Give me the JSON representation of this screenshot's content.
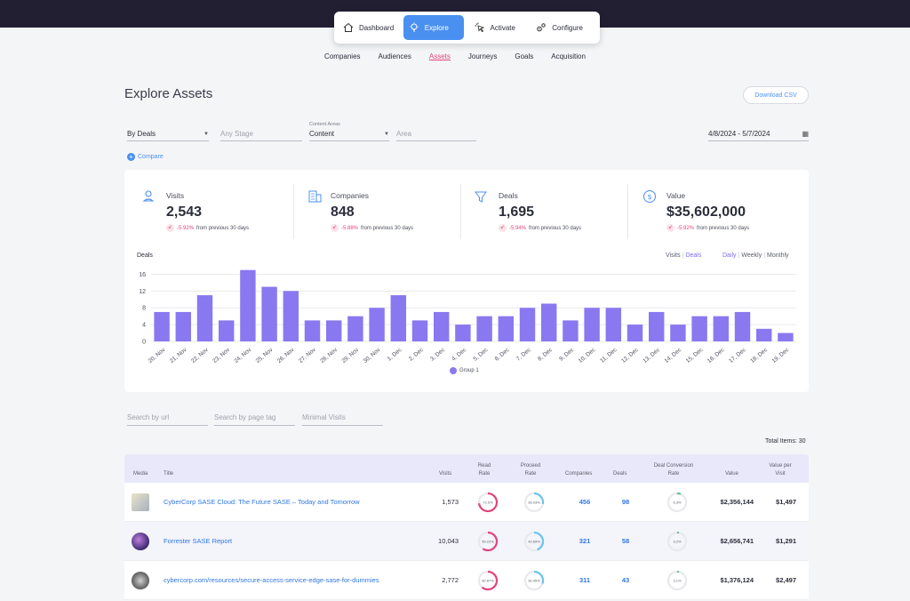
{
  "nav": {
    "items": [
      {
        "label": "Dashboard",
        "icon": "home-icon"
      },
      {
        "label": "Explore",
        "icon": "bulb-icon",
        "active": true
      },
      {
        "label": "Activate",
        "icon": "click-icon"
      },
      {
        "label": "Configure",
        "icon": "gears-icon"
      }
    ]
  },
  "subnav": [
    "Companies",
    "Audiences",
    "Assets",
    "Journeys",
    "Goals",
    "Acquisition"
  ],
  "page": {
    "title": "Explore Assets",
    "download_label": "Download CSV"
  },
  "filters": {
    "by_deals": "By Deals",
    "stage_placeholder": "Any Stage",
    "content_areas_label": "Content Areas",
    "content_value": "Content",
    "area_placeholder": "Area",
    "date_range": "4/8/2024  - 5/7/2024",
    "compare_label": "Compare"
  },
  "kpis": [
    {
      "label": "Visits",
      "value": "2,543",
      "delta": "-5.92%",
      "suffix": "from previous 30 days",
      "icon": "visitor-icon"
    },
    {
      "label": "Companies",
      "value": "848",
      "delta": "-5.88%",
      "suffix": "from previous 30 days",
      "icon": "building-icon"
    },
    {
      "label": "Deals",
      "value": "1,695",
      "delta": "-5.94%",
      "suffix": "from previous 30 days",
      "icon": "funnel-icon"
    },
    {
      "label": "Value",
      "value": "$35,602,000",
      "delta": "-5.92%",
      "suffix": "from previous 30 days",
      "icon": "dollar-icon"
    }
  ],
  "chart_toggles": {
    "visits": "Visits",
    "deals": "Deals",
    "daily": "Daily",
    "weekly": "Weekly",
    "monthly": "Monthly"
  },
  "chart_data": {
    "type": "bar",
    "title": "Deals",
    "categories": [
      "20, Nov",
      "21, Nov",
      "22, Nov",
      "23, Nov",
      "24, Nov",
      "25, Nov",
      "26, Nov",
      "27, Nov",
      "28, Nov",
      "29, Nov",
      "30, Nov",
      "1, Dec",
      "2, Dec",
      "3, Dec",
      "4, Dec",
      "5, Dec",
      "6, Dec",
      "7, Dec",
      "8, Dec",
      "9, Dec",
      "10, Dec",
      "11, Dec",
      "12, Dec",
      "13, Dec",
      "14, Dec",
      "15, Dec",
      "16, Dec",
      "17, Dec",
      "18, Dec",
      "19, Dec"
    ],
    "series": [
      {
        "name": "Group 1",
        "values": [
          7,
          7,
          11,
          5,
          17,
          13,
          12,
          5,
          5,
          6,
          8,
          11,
          5,
          7,
          4,
          6,
          6,
          8,
          9,
          5,
          8,
          8,
          4,
          7,
          4,
          6,
          6,
          7,
          3,
          2
        ],
        "color": "#8a78f0"
      }
    ],
    "yticks": [
      0,
      4,
      8,
      12,
      16
    ],
    "ylim": [
      0,
      18
    ],
    "grid": true,
    "legend": "bottom-center"
  },
  "table_filters": {
    "url_placeholder": "Search by url",
    "tag_placeholder": "Search by page tag",
    "visits_placeholder": "Minimal Visits"
  },
  "total_items": "Total Items: 30",
  "table": {
    "headers": {
      "media": "Media",
      "title": "Title",
      "visits": "Visits",
      "read_rate_1": "Read",
      "read_rate_2": "Rate",
      "proceed_rate_1": "Proceed",
      "proceed_rate_2": "Rate",
      "companies": "Companies",
      "deals": "Deals",
      "conv_1": "Deal Conversion",
      "conv_2": "Rate",
      "value": "Value",
      "vpv_1": "Value per",
      "vpv_2": "Visit"
    },
    "rows": [
      {
        "title": "CyberCorp SASE Cloud: The Future SASE – Today and Tomorrow",
        "visits": "1,573",
        "read_rate": 72.6,
        "read_label": "72.6%",
        "proceed_rate": 28.03,
        "proceed_label": "28.03%",
        "companies": "456",
        "deals": "98",
        "conv_rate": 6.3,
        "conv_label": "6.3%",
        "value": "$2,356,144",
        "value_per_visit": "$1,497"
      },
      {
        "title": "Forrester SASE Report",
        "visits": "10,043",
        "read_rate": 59.22,
        "read_label": "59.22%",
        "proceed_rate": 43.69,
        "proceed_label": "43.69%",
        "companies": "321",
        "deals": "58",
        "conv_rate": 3.2,
        "conv_label": "3.2%",
        "value": "$2,656,741",
        "value_per_visit": "$1,291"
      },
      {
        "title": "cybercorp.com/resources/secure-access-service-edge-sase-for-dummies",
        "visits": "2,772",
        "read_rate": 60.87,
        "read_label": "60.87%",
        "proceed_rate": 30.45,
        "proceed_label": "30.45%",
        "companies": "311",
        "deals": "43",
        "conv_rate": 3.1,
        "conv_label": "3.1%",
        "value": "$1,376,124",
        "value_per_visit": "$2,497"
      }
    ]
  },
  "colors": {
    "accent": "#4a90f0",
    "negative": "#e0457b",
    "bar": "#8a78f0",
    "read_ring": "#e0457b",
    "proceed_ring": "#6cc4f0",
    "conv_ring": "#5fc48a"
  }
}
